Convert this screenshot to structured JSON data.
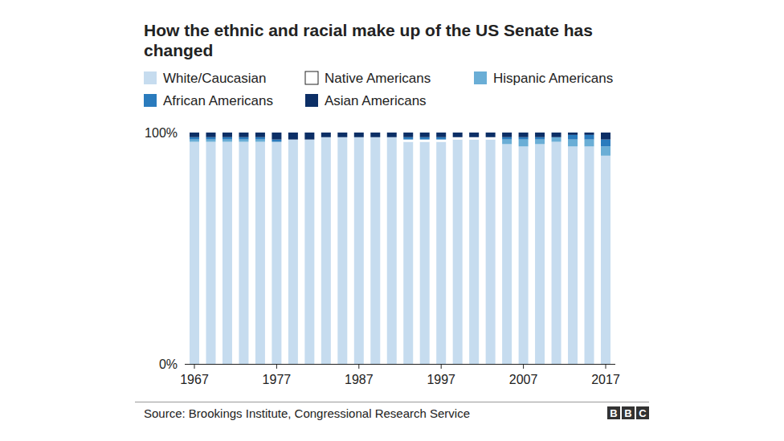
{
  "chart_data": {
    "type": "bar",
    "stacked": true,
    "title": "How the ethnic and racial make up of the US Senate has changed",
    "source": "Source: Brookings Institute, Congressional Research Service",
    "logo": "BBC",
    "categories": [
      "1967",
      null,
      null,
      null,
      null,
      "1977",
      null,
      null,
      null,
      null,
      "1987",
      null,
      null,
      null,
      null,
      "1997",
      null,
      null,
      null,
      null,
      "2007",
      null,
      null,
      null,
      null,
      "2017"
    ],
    "ylim": [
      0,
      100
    ],
    "yticks": [
      {
        "value": 0,
        "label": "0%"
      },
      {
        "value": 100,
        "label": "100%"
      }
    ],
    "grid": false,
    "legend": "top",
    "series": [
      {
        "name": "White/Caucasian",
        "color": "#c6dcef",
        "values": [
          96,
          96,
          96,
          96,
          96,
          96,
          97,
          97,
          98,
          98,
          98,
          98,
          98,
          96,
          96,
          96,
          97,
          97,
          97,
          95,
          94,
          95,
          96,
          94,
          94,
          90
        ]
      },
      {
        "name": "Native Americans",
        "color": "#ffffff",
        "values": [
          0,
          0,
          0,
          0,
          0,
          0,
          0,
          0,
          0,
          0,
          0,
          0,
          0,
          1,
          1,
          1,
          1,
          1,
          1,
          0,
          0,
          0,
          0,
          0,
          0,
          0
        ]
      },
      {
        "name": "Hispanic Americans",
        "color": "#6aaed6",
        "values": [
          1,
          1,
          1,
          1,
          1,
          0,
          0,
          0,
          0,
          0,
          0,
          0,
          0,
          0,
          0,
          0,
          0,
          0,
          0,
          2,
          3,
          2,
          2,
          3,
          3,
          4
        ]
      },
      {
        "name": "African Americans",
        "color": "#2a7bbd",
        "values": [
          1,
          1,
          1,
          1,
          1,
          1,
          0,
          0,
          0,
          0,
          0,
          0,
          0,
          1,
          1,
          1,
          0,
          0,
          0,
          1,
          1,
          1,
          0,
          2,
          2,
          3
        ]
      },
      {
        "name": "Asian Americans",
        "color": "#0c2f66",
        "values": [
          2,
          2,
          2,
          2,
          2,
          3,
          3,
          3,
          2,
          2,
          2,
          2,
          2,
          2,
          2,
          2,
          2,
          2,
          2,
          2,
          2,
          2,
          2,
          1,
          1,
          3
        ]
      }
    ]
  }
}
